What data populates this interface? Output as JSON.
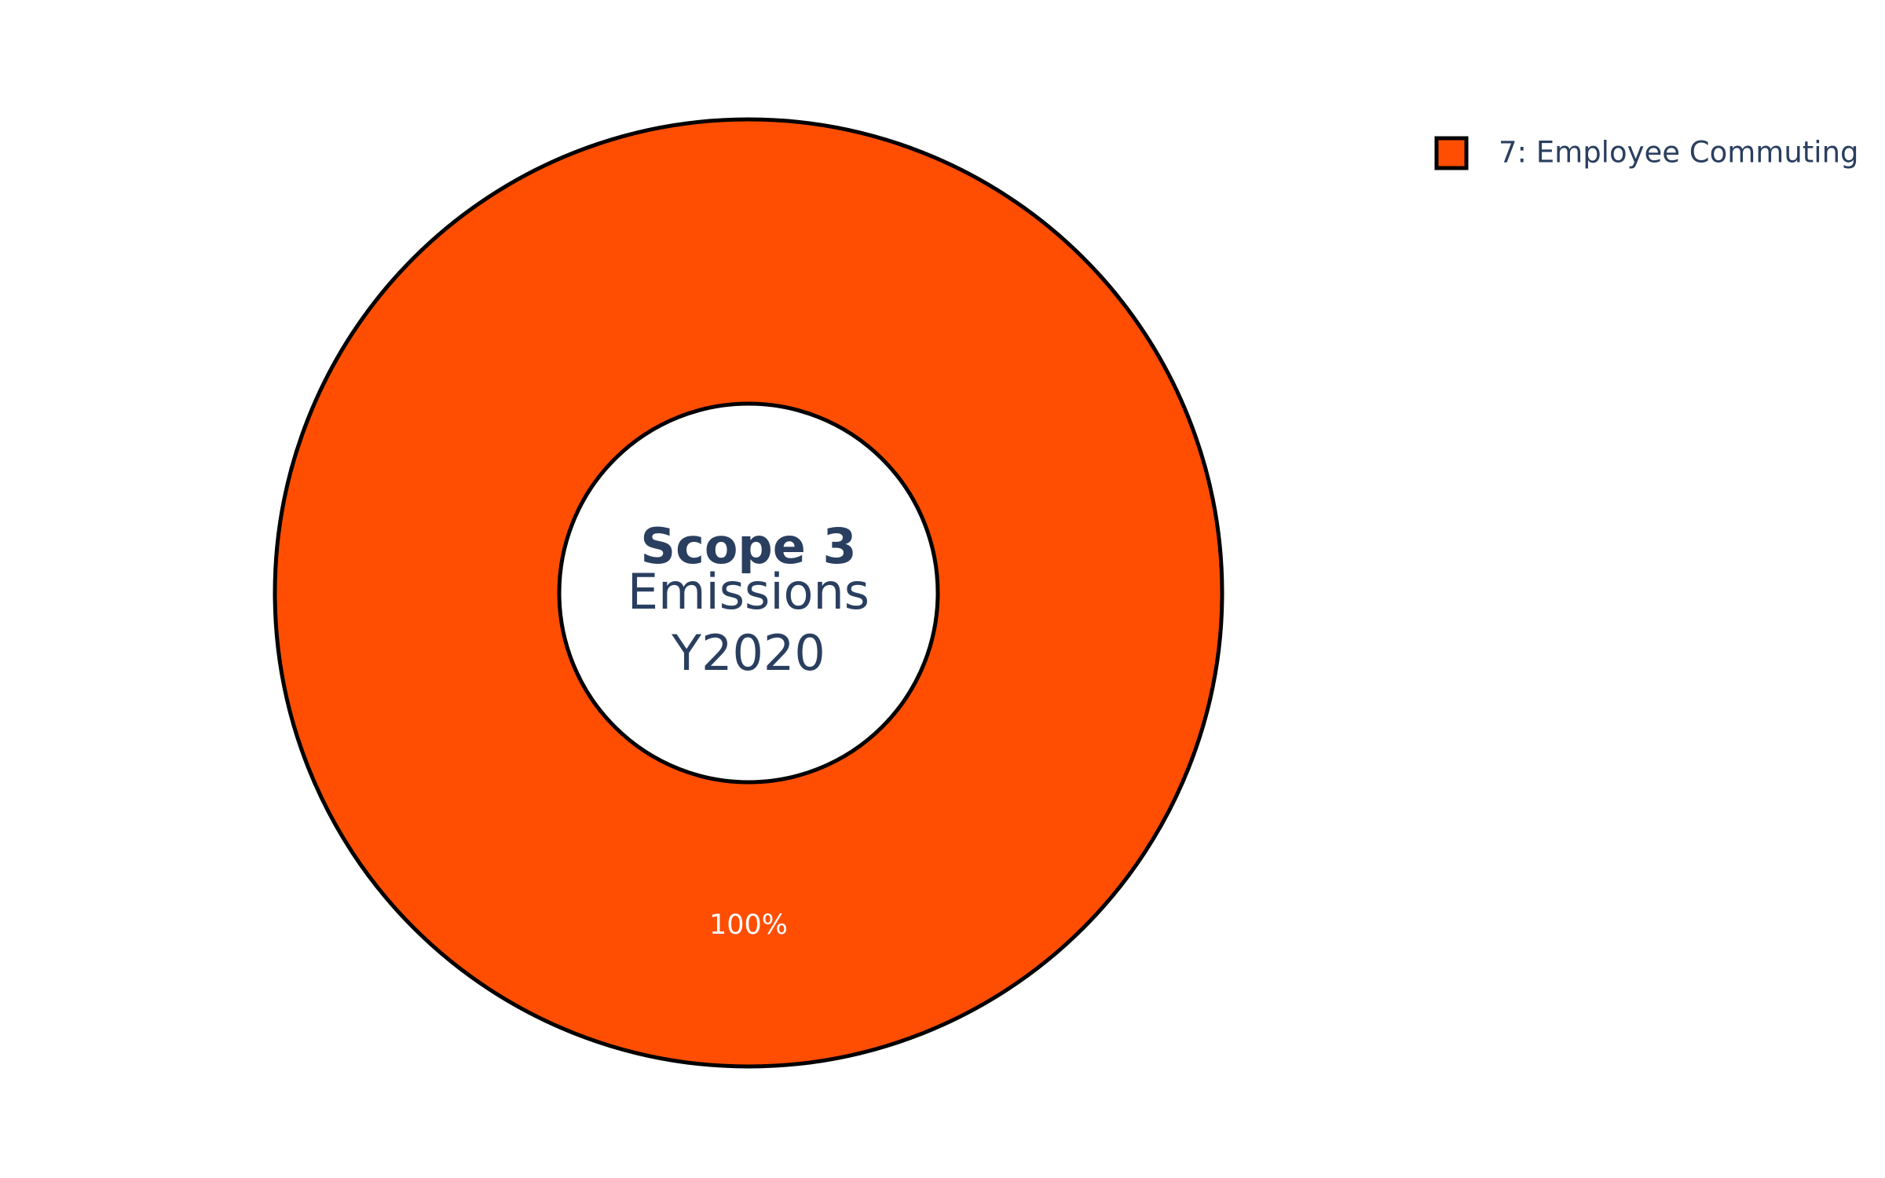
{
  "chart_data": {
    "type": "pie",
    "hole": true,
    "center_text": {
      "line1": "Scope 3",
      "line2": "Emissions",
      "line3": "Y2020"
    },
    "slices": [
      {
        "label": "7: Employee Commuting",
        "percent": 100,
        "text": "100%",
        "color": "#ff4e02"
      }
    ],
    "legend": {
      "placement": "top-right",
      "items": [
        "7: Employee Commuting"
      ]
    },
    "outline_color": "#000000",
    "text_color": "#2a3f5f"
  }
}
